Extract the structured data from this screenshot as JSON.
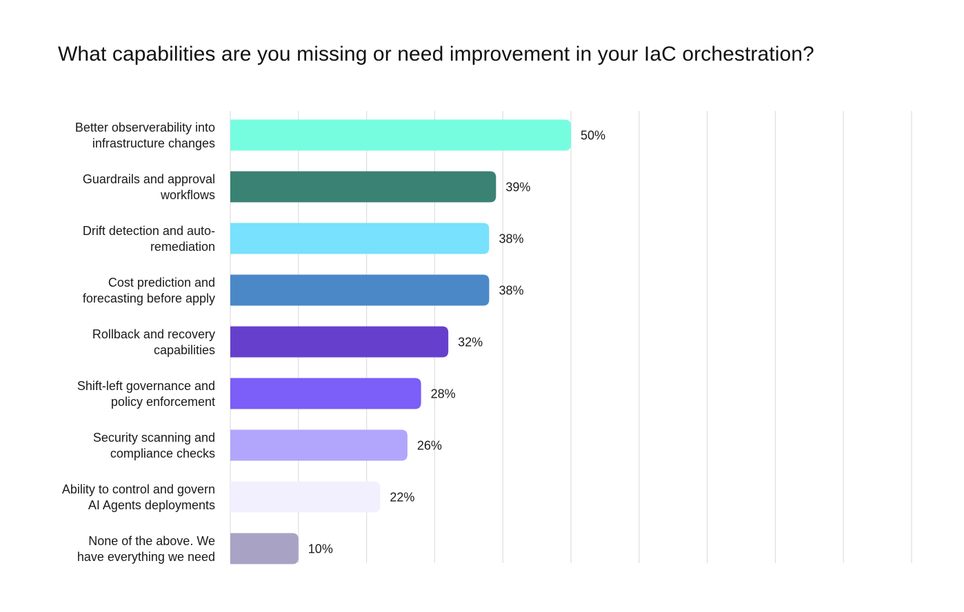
{
  "chart_data": {
    "type": "bar",
    "orientation": "horizontal",
    "title": "What capabilities are you missing or need improvement in your IaC orchestration?",
    "xlim": [
      0,
      100
    ],
    "grid": true,
    "categories": [
      [
        "Better observerability into",
        "infrastructure changes"
      ],
      [
        "Guardrails and approval",
        "workflows"
      ],
      [
        "Drift detection and auto-",
        "remediation"
      ],
      [
        "Cost prediction and",
        "forecasting before apply"
      ],
      [
        "Rollback and recovery",
        "capabilities"
      ],
      [
        "Shift-left governance and",
        "policy enforcement"
      ],
      [
        "Security scanning and",
        "compliance checks"
      ],
      [
        "Ability to control and govern",
        "AI Agents deployments"
      ],
      [
        "None of the above. We",
        "have everything we need"
      ]
    ],
    "values": [
      50,
      39,
      38,
      38,
      32,
      28,
      26,
      22,
      10
    ],
    "value_labels": [
      "50%",
      "39%",
      "38%",
      "38%",
      "32%",
      "28%",
      "26%",
      "22%",
      "10%"
    ],
    "colors": [
      "#76fde0",
      "#3a8273",
      "#78e1fd",
      "#4b88c8",
      "#6640cc",
      "#7c5ef8",
      "#b1a6fc",
      "#f2f0fe",
      "#a8a3c5"
    ]
  }
}
